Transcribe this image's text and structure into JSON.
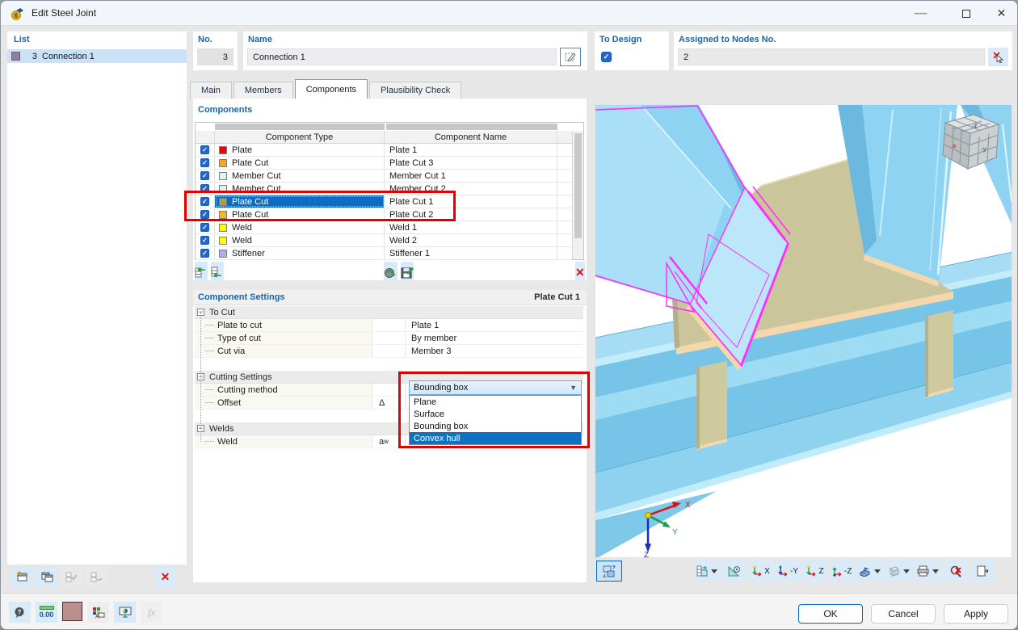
{
  "window": {
    "title": "Edit Steel Joint"
  },
  "list_panel": {
    "label": "List",
    "item": {
      "no": "3",
      "name": "Connection 1"
    }
  },
  "fields": {
    "no_label": "No.",
    "no_value": "3",
    "name_label": "Name",
    "name_value": "Connection 1",
    "to_design_label": "To Design",
    "to_design_checked": true,
    "assigned_label": "Assigned to Nodes No.",
    "assigned_value": "2"
  },
  "tabs": [
    "Main",
    "Members",
    "Components",
    "Plausibility Check"
  ],
  "active_tab": "Components",
  "components": {
    "section_title": "Components",
    "col_type": "Component Type",
    "col_name": "Component Name",
    "rows": [
      {
        "type": "Plate",
        "name": "Plate 1",
        "color": "#F80000",
        "checked": true
      },
      {
        "type": "Plate Cut",
        "name": "Plate Cut 3",
        "color": "#F5A623",
        "checked": true
      },
      {
        "type": "Member Cut",
        "name": "Member Cut 1",
        "color": "#D8F6F4",
        "checked": true
      },
      {
        "type": "Member Cut",
        "name": "Member Cut 2",
        "color": "#D8F6F4",
        "checked": true
      },
      {
        "type": "Plate Cut",
        "name": "Plate Cut 1",
        "color": "#A8A14C",
        "checked": true,
        "selected": true
      },
      {
        "type": "Plate Cut",
        "name": "Plate Cut 2",
        "color": "#F5B62A",
        "checked": true
      },
      {
        "type": "Weld",
        "name": "Weld 1",
        "color": "#FFFF00",
        "checked": true
      },
      {
        "type": "Weld",
        "name": "Weld 2",
        "color": "#FFFF00",
        "checked": true
      },
      {
        "type": "Stiffener",
        "name": "Stiffener 1",
        "color": "#B0ABF0",
        "checked": true
      }
    ]
  },
  "settings": {
    "section_title": "Component Settings",
    "context": "Plate Cut 1",
    "groups": [
      {
        "label": "To Cut",
        "rows": [
          {
            "label": "Plate to cut",
            "value": "Plate 1"
          },
          {
            "label": "Type of cut",
            "value": "By member"
          },
          {
            "label": "Cut via",
            "value": "Member 3"
          }
        ]
      },
      {
        "label": "Cutting Settings",
        "rows": [
          {
            "label": "Cutting method",
            "value": ""
          },
          {
            "label": "Offset",
            "sym": "Δ",
            "value": ""
          }
        ]
      },
      {
        "label": "Welds",
        "rows": [
          {
            "label": "Weld",
            "sym": "a",
            "sub": "w",
            "value": ""
          }
        ]
      }
    ],
    "combo": {
      "value": "Bounding box"
    },
    "dropdown": {
      "options": [
        "Plane",
        "Surface",
        "Bounding box",
        "Convex hull"
      ],
      "selected": "Convex hull"
    }
  },
  "viewport": {
    "axis": {
      "x": "X",
      "y": "Y",
      "z": "Z"
    },
    "cube": {
      "top": "-z",
      "left": "x",
      "right": "-y"
    },
    "view_buttons": [
      "X",
      "-Y",
      "Z",
      "-Z"
    ]
  },
  "footer": {
    "ok": "OK",
    "cancel": "Cancel",
    "apply": "Apply",
    "icons": {
      "units": "0.00",
      "display": "A",
      "fx": "fx"
    }
  },
  "colors": {
    "accent": "#0B72C6",
    "label_blue": "#1765A5",
    "row_selection": "#0E6BC4",
    "annotation_red": "#DE0202",
    "selection_magenta": "#FF2BFF",
    "beam_blue": "#8FD3F3",
    "gusset_tan": "#CBC59B",
    "edge_peach": "#F4D7AB"
  }
}
